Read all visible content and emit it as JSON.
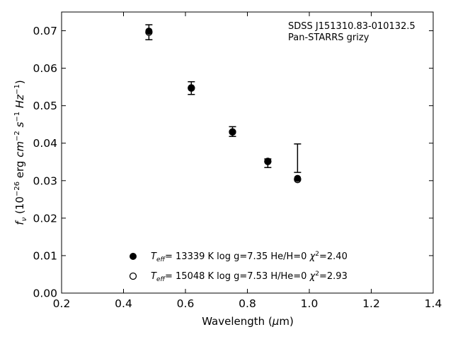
{
  "chart_data": {
    "type": "scatter",
    "title": "",
    "xlabel": "Wavelength (μm)",
    "ylabel": "fν (10⁻²⁶ erg cm⁻² s⁻¹ Hz⁻¹)",
    "xlim": [
      0.2,
      1.4
    ],
    "ylim": [
      0.0,
      0.075
    ],
    "xticks": [
      "0.2",
      "0.4",
      "0.6",
      "0.8",
      "1.0",
      "1.2",
      "1.4"
    ],
    "yticks": [
      "0.00",
      "0.01",
      "0.02",
      "0.03",
      "0.04",
      "0.05",
      "0.06",
      "0.07"
    ],
    "grid": false,
    "annotation_lines": [
      "SDSS J151310.83-010132.5",
      "Pan-STARRS grizy"
    ],
    "observed": {
      "x": [
        0.482,
        0.619,
        0.752,
        0.866,
        0.962
      ],
      "y": [
        0.0696,
        0.0547,
        0.043,
        0.035,
        0.036
      ],
      "yerr_low": [
        0.002,
        0.0017,
        0.0012,
        0.0015,
        0.0038
      ],
      "yerr_high": [
        0.002,
        0.0017,
        0.0014,
        0.0008,
        0.0038
      ],
      "cap_x_offset": [
        0,
        0,
        0,
        0,
        0.0
      ],
      "markers": false
    },
    "series": [
      {
        "marker": "filled-circle",
        "legend_parts": {
          "t": "T",
          "sub": "eff",
          "rest": "= 13339 K  log g=7.35  He/H=0  ",
          "chi": "χ",
          "sup": "2",
          "val": "=2.40"
        },
        "x": [
          0.482,
          0.619,
          0.752,
          0.866,
          0.962
        ],
        "y": [
          0.0699,
          0.0548,
          0.043,
          0.0352,
          0.0306
        ]
      },
      {
        "marker": "open-circle",
        "legend_parts": {
          "t": "T",
          "sub": "eff",
          "rest": "= 15048 K  log g=7.53  H/He=0  ",
          "chi": "χ",
          "sup": "2",
          "val": "=2.93"
        },
        "x": [
          0.482,
          0.619,
          0.752,
          0.866,
          0.962
        ],
        "y": [
          0.0696,
          0.0547,
          0.043,
          0.0351,
          0.0303
        ]
      }
    ],
    "colors": {
      "axis": "#000000",
      "marker": "#000000",
      "open_fill": "#ffffff"
    }
  }
}
